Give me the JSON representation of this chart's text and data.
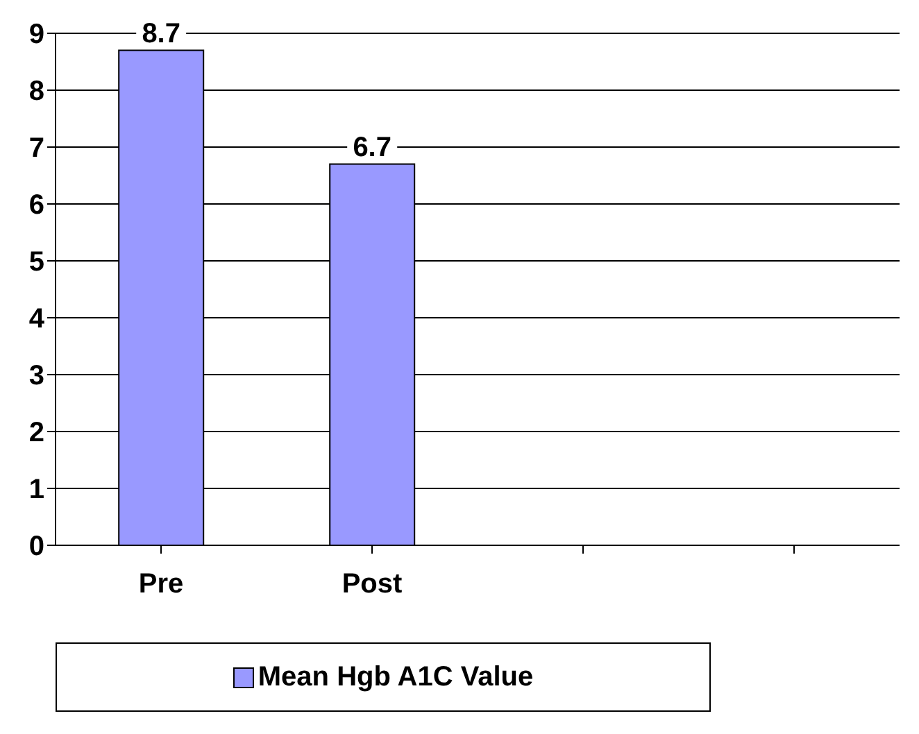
{
  "chart_data": {
    "type": "bar",
    "categories": [
      "Pre",
      "Post",
      null,
      null
    ],
    "series": [
      {
        "name": "Mean Hgb A1C Value",
        "color": "#9999ff",
        "values": [
          8.7,
          6.7,
          null,
          null
        ]
      }
    ],
    "ylim": [
      0,
      9
    ],
    "yticks": [
      0,
      1,
      2,
      3,
      4,
      5,
      6,
      7,
      8,
      9
    ],
    "grid": "y",
    "legend": "bottom",
    "data_labels": true
  }
}
